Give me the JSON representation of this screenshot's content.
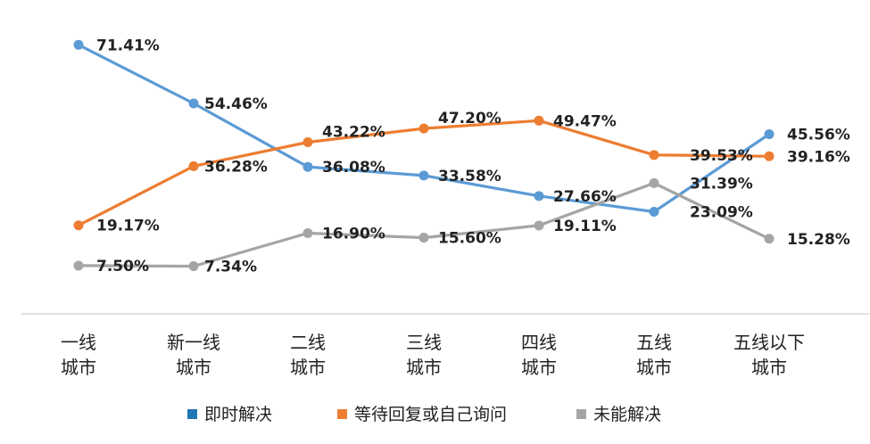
{
  "chart_data": {
    "type": "line",
    "categories": [
      [
        "一线",
        "城市"
      ],
      [
        "新一线",
        "城市"
      ],
      [
        "二线",
        "城市"
      ],
      [
        "三线",
        "城市"
      ],
      [
        "四线",
        "城市"
      ],
      [
        "五线",
        "城市"
      ],
      [
        "五线以下",
        "城市"
      ]
    ],
    "ylim": [
      0,
      80
    ],
    "grid": false,
    "legend_position": "bottom",
    "series": [
      {
        "name": "即时解决",
        "color": "#5b9bd5",
        "values": [
          71.41,
          54.46,
          36.08,
          33.58,
          27.66,
          23.09,
          45.56
        ],
        "labels": [
          "71.41%",
          "54.46%",
          "36.08%",
          "33.58%",
          "27.66%",
          "23.09%",
          "45.56%"
        ]
      },
      {
        "name": "等待回复或自己询问",
        "color": "#ed7d31",
        "values": [
          19.17,
          36.28,
          43.22,
          47.2,
          49.47,
          39.53,
          39.16
        ],
        "labels": [
          "19.17%",
          "36.28%",
          "43.22%",
          "47.20%",
          "49.47%",
          "39.53%",
          "39.16%"
        ]
      },
      {
        "name": "未能解决",
        "color": "#a5a5a5",
        "values": [
          7.5,
          7.34,
          16.9,
          15.6,
          19.11,
          31.39,
          15.28
        ],
        "labels": [
          "7.50%",
          "7.34%",
          "16.90%",
          "15.60%",
          "19.11%",
          "31.39%",
          "15.28%"
        ]
      }
    ],
    "legend_marker_colors": [
      "#1f77b4",
      "#ed7d31",
      "#a5a5a5"
    ]
  }
}
